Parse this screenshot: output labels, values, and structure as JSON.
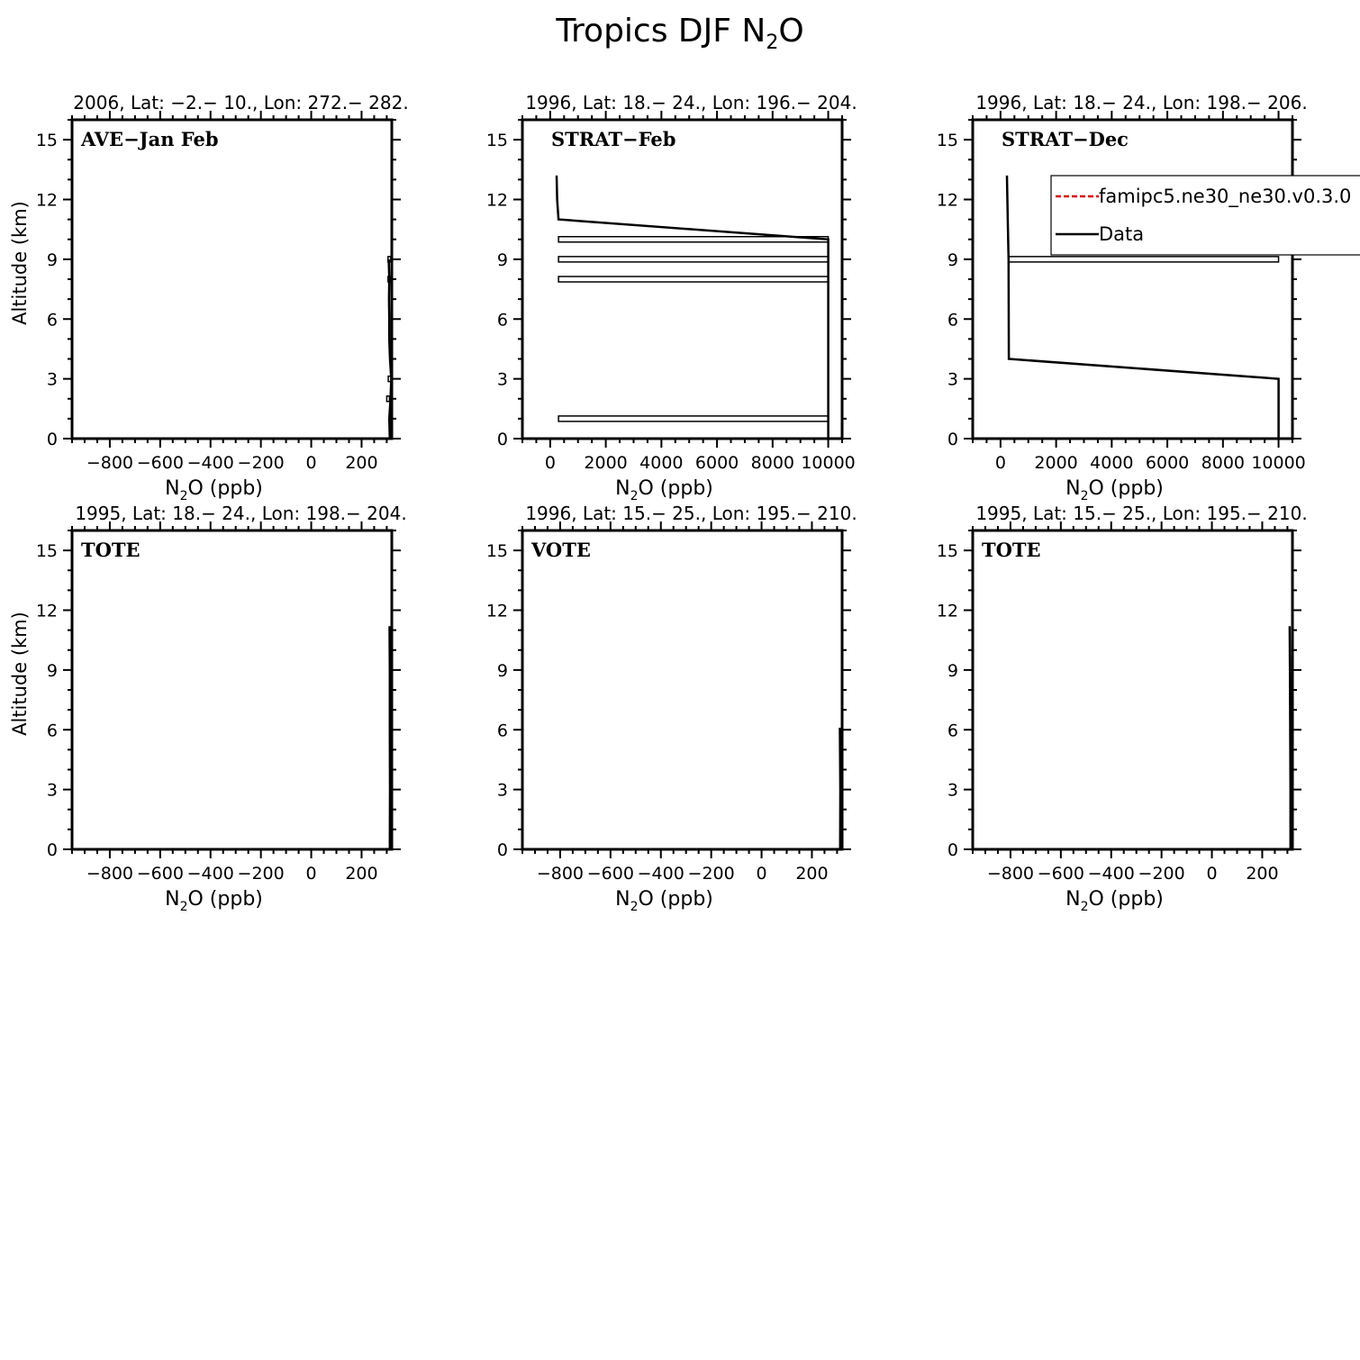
{
  "figure_title": "Tropics DJF N2O",
  "figure_title_base": "Tropics DJF N",
  "figure_title_sub": "2",
  "figure_title_tail": "O",
  "ylabel": "Altitude (km)",
  "xlabel_base": "N",
  "xlabel_sub": "2",
  "xlabel_tail": "O (ppb)",
  "legend": {
    "entries": [
      {
        "label": "famipc5.ne30_ne30.v0.3.0",
        "color": "#e00000",
        "dash": true
      },
      {
        "label": "Data",
        "color": "#000000",
        "dash": false
      }
    ]
  },
  "chart_data": [
    {
      "type": "line",
      "panel_label": "AVE-Jan Feb",
      "subtitle": "2006, Lat: -2.- 10., Lon: 272.- 282.",
      "xlim": [
        -950,
        320
      ],
      "ylim": [
        0,
        16
      ],
      "xticks": [
        -800,
        -600,
        -400,
        -200,
        0,
        200
      ],
      "yticks": [
        0,
        3,
        6,
        9,
        12,
        15
      ],
      "series": [
        {
          "name": "Data",
          "points": [
            [
              312,
              0
            ],
            [
              310,
              1
            ],
            [
              315,
              2
            ],
            [
              318,
              3
            ],
            [
              313,
              4
            ],
            [
              310,
              5
            ],
            [
              310,
              6
            ],
            [
              309,
              7
            ],
            [
              310,
              8
            ],
            [
              308,
              9
            ]
          ]
        }
      ],
      "error_boxes": [
        {
          "alt": 9,
          "x0": 305,
          "x1": 312
        },
        {
          "alt": 8,
          "x0": 305,
          "x1": 312
        },
        {
          "alt": 3,
          "x0": 306,
          "x1": 314
        },
        {
          "alt": 2,
          "x0": 300,
          "x1": 310
        }
      ]
    },
    {
      "type": "line",
      "panel_label": "STRAT-Feb",
      "subtitle": "1996, Lat: 18.- 24., Lon: 196.- 204.",
      "xlim": [
        -1000,
        10500
      ],
      "ylim": [
        0,
        16
      ],
      "xticks": [
        0,
        2000,
        4000,
        6000,
        8000,
        10000
      ],
      "yticks": [
        0,
        3,
        6,
        9,
        12,
        15
      ],
      "series": [
        {
          "name": "Data",
          "points": [
            [
              10000,
              0
            ],
            [
              10000,
              1
            ],
            [
              10000,
              8
            ],
            [
              10000,
              9
            ],
            [
              10000,
              10
            ],
            [
              300,
              11
            ],
            [
              250,
              12
            ],
            [
              230,
              13.2
            ]
          ]
        }
      ],
      "error_boxes": [
        {
          "alt": 10,
          "x0": 300,
          "x1": 10000
        },
        {
          "alt": 9,
          "x0": 300,
          "x1": 10000
        },
        {
          "alt": 8,
          "x0": 300,
          "x1": 10000
        },
        {
          "alt": 1,
          "x0": 300,
          "x1": 10000
        }
      ]
    },
    {
      "type": "line",
      "panel_label": "STRAT-Dec",
      "subtitle": "1996, Lat: 18.- 24., Lon: 198.- 206.",
      "xlim": [
        -1000,
        10500
      ],
      "ylim": [
        0,
        16
      ],
      "xticks": [
        0,
        2000,
        4000,
        6000,
        8000,
        10000
      ],
      "yticks": [
        0,
        3,
        6,
        9,
        12,
        15
      ],
      "series": [
        {
          "name": "Data",
          "points": [
            [
              10000,
              0
            ],
            [
              10000,
              3
            ],
            [
              300,
              4
            ],
            [
              290,
              9
            ],
            [
              260,
              11
            ],
            [
              230,
              13.2
            ]
          ]
        }
      ],
      "error_boxes": [
        {
          "alt": 9,
          "x0": 300,
          "x1": 10000
        }
      ]
    },
    {
      "type": "line",
      "panel_label": "TOTE",
      "subtitle": "1995, Lat: 18.- 24., Lon: 198.- 204.",
      "xlim": [
        -950,
        320
      ],
      "ylim": [
        0,
        16
      ],
      "xticks": [
        -800,
        -600,
        -400,
        -200,
        0,
        200
      ],
      "yticks": [
        0,
        3,
        6,
        9,
        12,
        15
      ],
      "series": [
        {
          "name": "Data",
          "points": [
            [
              312,
              0
            ],
            [
              313,
              3
            ],
            [
              312,
              6
            ],
            [
              312,
              9
            ],
            [
              311,
              11.2
            ]
          ]
        }
      ],
      "error_boxes": []
    },
    {
      "type": "line",
      "panel_label": "VOTE",
      "subtitle": "1996, Lat: 15.- 25., Lon: 195.- 210.",
      "xlim": [
        -950,
        320
      ],
      "ylim": [
        0,
        16
      ],
      "xticks": [
        -800,
        -600,
        -400,
        -200,
        0,
        200
      ],
      "yticks": [
        0,
        3,
        6,
        9,
        12,
        15
      ],
      "series": [
        {
          "name": "Data",
          "points": [
            [
              312,
              0
            ],
            [
              313,
              3
            ],
            [
              311,
              6.1
            ]
          ]
        }
      ],
      "error_boxes": []
    },
    {
      "type": "line",
      "panel_label": "TOTE",
      "subtitle": "1995, Lat: 15.- 25., Lon: 195.- 210.",
      "xlim": [
        -950,
        320
      ],
      "ylim": [
        0,
        16
      ],
      "xticks": [
        -800,
        -600,
        -400,
        -200,
        0,
        200
      ],
      "yticks": [
        0,
        3,
        6,
        9,
        12,
        15
      ],
      "series": [
        {
          "name": "Data",
          "points": [
            [
              312,
              0
            ],
            [
              312,
              3
            ],
            [
              311,
              6
            ],
            [
              310,
              9
            ],
            [
              309,
              11.2
            ]
          ]
        }
      ],
      "error_boxes": []
    }
  ]
}
